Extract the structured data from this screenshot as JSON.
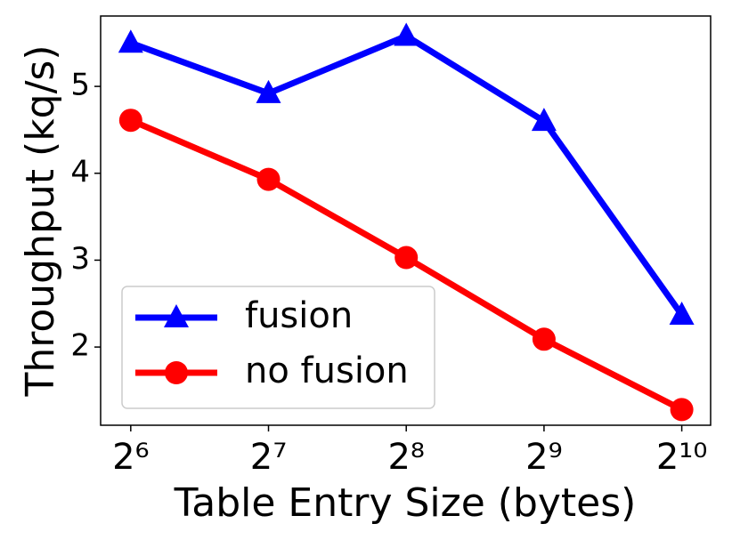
{
  "chart_data": {
    "type": "line",
    "x_label": "Table Entry Size (bytes)",
    "y_label": "Throughput (kq/s)",
    "x": [
      64,
      128,
      256,
      512,
      1024
    ],
    "x_scale": "log2",
    "xlim": [
      55,
      1184
    ],
    "xticks": [
      {
        "value": 64,
        "label": "2⁶"
      },
      {
        "value": 128,
        "label": "2⁷"
      },
      {
        "value": 256,
        "label": "2⁸"
      },
      {
        "value": 512,
        "label": "2⁹"
      },
      {
        "value": 1024,
        "label": "2¹⁰"
      }
    ],
    "ylim": [
      1.1,
      5.81
    ],
    "yticks": [
      2,
      3,
      4,
      5
    ],
    "legend": "lower left",
    "series": [
      {
        "name": "fusion",
        "color": "#0000ff",
        "marker": "triangle",
        "values": [
          5.5,
          4.92,
          5.58,
          4.6,
          2.37
        ]
      },
      {
        "name": "no fusion",
        "color": "#ff0000",
        "marker": "circle",
        "values": [
          4.61,
          3.93,
          3.03,
          2.09,
          1.28
        ]
      }
    ]
  }
}
